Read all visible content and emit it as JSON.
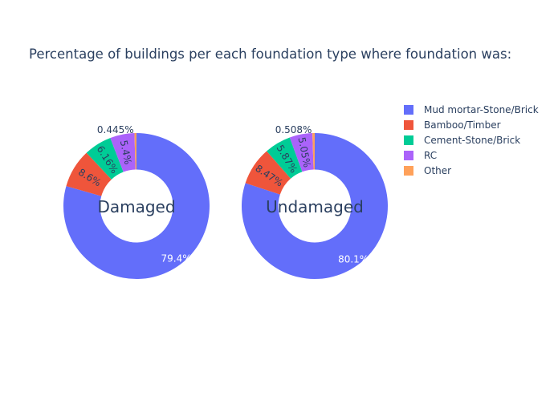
{
  "chart_data": {
    "type": "pie",
    "title": "Percentage of buildings per each foundation type where foundation was:",
    "hole": 0.5,
    "labels": [
      "Mud mortar-Stone/Brick",
      "Bamboo/Timber",
      "Cement-Stone/Brick",
      "RC",
      "Other"
    ],
    "colors": [
      "#636efa",
      "#ef553b",
      "#00cc96",
      "#ab63fa",
      "#ffa15a"
    ],
    "legend_position": "top-right",
    "charts": [
      {
        "name": "Damaged",
        "center_text": "Damaged",
        "values": [
          79.4,
          8.6,
          6.16,
          5.4,
          0.445
        ],
        "slice_labels": [
          "79.4%",
          "8.6%",
          "6.16%",
          "5.4%",
          "0.445%"
        ]
      },
      {
        "name": "Undamaged",
        "center_text": "Undamaged",
        "values": [
          80.1,
          8.47,
          5.87,
          5.05,
          0.508
        ],
        "slice_labels": [
          "80.1%",
          "8.47%",
          "5.87%",
          "5.05%",
          "0.508%"
        ]
      }
    ]
  }
}
